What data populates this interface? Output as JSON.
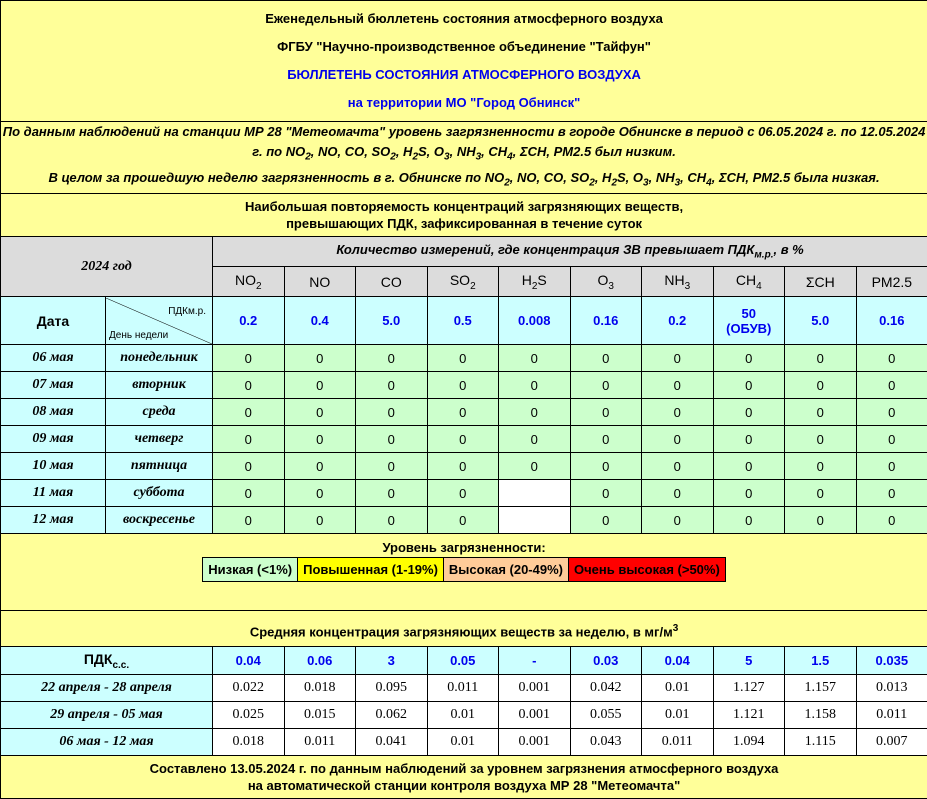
{
  "header": {
    "line1": "Еженедельный бюллетень состояния атмосферного воздуха",
    "line2": "ФГБУ \"Научно-производственное объединение \"Тайфун\"",
    "line3": "БЮЛЛЕТЕНЬ СОСТОЯНИЯ АТМОСФЕРНОГО ВОЗДУХА",
    "line4": "на территории МО \"Город Обнинск\""
  },
  "intro": {
    "p1": [
      {
        "t": "По данным наблюдений на станции МР 28 \"Метеомачта\" уровень загрязненности в городе Обнинске в период с 06.05.2024 г. по 12.05.2024 г. по NO"
      },
      {
        "sub": "2"
      },
      {
        "t": ", NO, CO, SO"
      },
      {
        "sub": "2"
      },
      {
        "t": ", H"
      },
      {
        "sub": "2"
      },
      {
        "t": "S, O"
      },
      {
        "sub": "3"
      },
      {
        "t": ", NH"
      },
      {
        "sub": "3"
      },
      {
        "t": ", CH"
      },
      {
        "sub": "4"
      },
      {
        "t": ", ΣCH, PM2.5 был низким."
      }
    ],
    "p2": [
      {
        "t": "В целом за прошедшую неделю загрязненность в г. Обнинске по NO"
      },
      {
        "sub": "2"
      },
      {
        "t": ", NO, CO, SO"
      },
      {
        "sub": "2"
      },
      {
        "t": ", H"
      },
      {
        "sub": "2"
      },
      {
        "t": "S, O"
      },
      {
        "sub": "3"
      },
      {
        "t": ", NH"
      },
      {
        "sub": "3"
      },
      {
        "t": ", CH"
      },
      {
        "sub": "4"
      },
      {
        "t": ", ΣCH, PM2.5 была низкая."
      }
    ]
  },
  "exceed": {
    "title1": "Наибольшая повторяемость концентраций загрязняющих веществ,",
    "title2": "превышающих ПДК, зафиксированная в течение суток",
    "year": "2024 год",
    "caption": [
      {
        "t": "Количество измерений, где концентрация ЗВ превышает ПДК"
      },
      {
        "sub": "м.р."
      },
      {
        "t": ", в %"
      }
    ],
    "pollutants": [
      [
        {
          "t": "NO"
        },
        {
          "sub": "2"
        }
      ],
      [
        {
          "t": "NO"
        }
      ],
      [
        {
          "t": "CO"
        }
      ],
      [
        {
          "t": "SO"
        },
        {
          "sub": "2"
        }
      ],
      [
        {
          "t": "H"
        },
        {
          "sub": "2"
        },
        {
          "t": "S"
        }
      ],
      [
        {
          "t": "O"
        },
        {
          "sub": "3"
        }
      ],
      [
        {
          "t": "NH"
        },
        {
          "sub": "3"
        }
      ],
      [
        {
          "t": "CH"
        },
        {
          "sub": "4"
        }
      ],
      [
        {
          "t": "ΣCH"
        }
      ],
      [
        {
          "t": "PM2.5"
        }
      ]
    ],
    "date_label": "Дата",
    "pdk_label": "ПДКм.р.",
    "weekday_label": "День недели",
    "pdk": [
      "0.2",
      "0.4",
      "5.0",
      "0.5",
      "0.008",
      "0.16",
      "0.2",
      "50\n(ОБУВ)",
      "5.0",
      "0.16"
    ],
    "rows": [
      {
        "date": "06 мая",
        "day": "понедельник",
        "values": [
          "0",
          "0",
          "0",
          "0",
          "0",
          "0",
          "0",
          "0",
          "0",
          "0"
        ]
      },
      {
        "date": "07 мая",
        "day": "вторник",
        "values": [
          "0",
          "0",
          "0",
          "0",
          "0",
          "0",
          "0",
          "0",
          "0",
          "0"
        ]
      },
      {
        "date": "08 мая",
        "day": "среда",
        "values": [
          "0",
          "0",
          "0",
          "0",
          "0",
          "0",
          "0",
          "0",
          "0",
          "0"
        ]
      },
      {
        "date": "09 мая",
        "day": "четверг",
        "values": [
          "0",
          "0",
          "0",
          "0",
          "0",
          "0",
          "0",
          "0",
          "0",
          "0"
        ]
      },
      {
        "date": "10 мая",
        "day": "пятница",
        "values": [
          "0",
          "0",
          "0",
          "0",
          "0",
          "0",
          "0",
          "0",
          "0",
          "0"
        ]
      },
      {
        "date": "11 мая",
        "day": "суббота",
        "values": [
          "0",
          "0",
          "0",
          "0",
          null,
          "0",
          "0",
          "0",
          "0",
          "0"
        ]
      },
      {
        "date": "12 мая",
        "day": "воскресенье",
        "values": [
          "0",
          "0",
          "0",
          "0",
          null,
          "0",
          "0",
          "0",
          "0",
          "0"
        ]
      }
    ]
  },
  "legend": {
    "title": "Уровень загрязненности:",
    "items": [
      {
        "label": "Низкая (<1%)",
        "color": "#ccffcc"
      },
      {
        "label": "Повышенная (1-19%)",
        "color": "#ffff00"
      },
      {
        "label": "Высокая (20-49%)",
        "color": "#ffcc99"
      },
      {
        "label": "Очень высокая (>50%)",
        "color": "#ff0000"
      }
    ]
  },
  "average": {
    "title": [
      {
        "t": "Средняя концентрация загрязняющих веществ за неделю, в мг/м"
      },
      {
        "sup": "3"
      }
    ],
    "pdk_label": [
      {
        "t": "ПДК"
      },
      {
        "sub": "с.с."
      }
    ],
    "pdk": [
      "0.04",
      "0.06",
      "3",
      "0.05",
      "-",
      "0.03",
      "0.04",
      "5",
      "1.5",
      "0.035"
    ],
    "rows": [
      {
        "period": "22 апреля - 28 апреля",
        "values": [
          "0.022",
          "0.018",
          "0.095",
          "0.011",
          "0.001",
          "0.042",
          "0.01",
          "1.127",
          "1.157",
          "0.013"
        ]
      },
      {
        "period": "29 апреля - 05 мая",
        "values": [
          "0.025",
          "0.015",
          "0.062",
          "0.01",
          "0.001",
          "0.055",
          "0.01",
          "1.121",
          "1.158",
          "0.011"
        ]
      },
      {
        "period": "06 мая - 12 мая",
        "values": [
          "0.018",
          "0.011",
          "0.041",
          "0.01",
          "0.001",
          "0.043",
          "0.011",
          "1.094",
          "1.115",
          "0.007"
        ]
      }
    ]
  },
  "footer": {
    "line1": "Составлено 13.05.2024 г. по данным наблюдений за уровнем загрязнения атмосферного воздуха",
    "line2": "на автоматической станции контроля воздуха МР 28 \"Метеомачта\""
  }
}
